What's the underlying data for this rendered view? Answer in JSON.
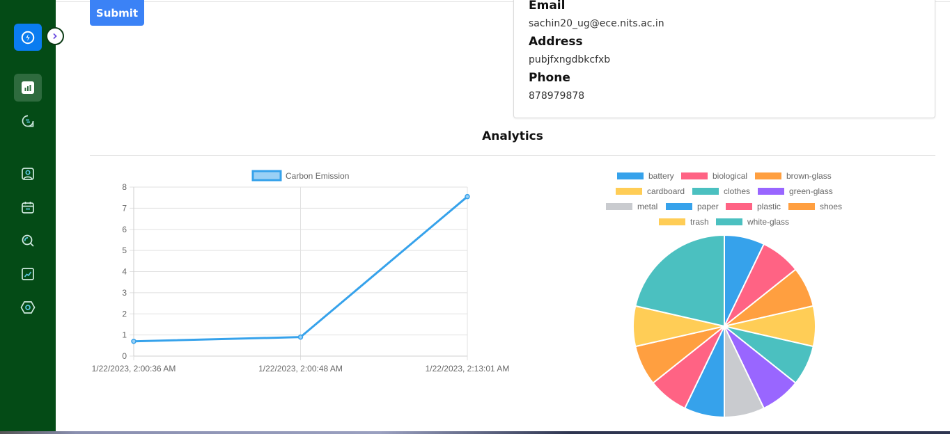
{
  "sidebar": {
    "brand_icon": "lightning-icon",
    "toggle_icon": "chevron-right-icon",
    "items": [
      {
        "name": "dashboard",
        "icon": "bar-chart-icon",
        "active": true
      },
      {
        "name": "messages",
        "icon": "chat-icon",
        "active": false
      },
      {
        "name": "profile",
        "icon": "user-card-icon",
        "active": false
      },
      {
        "name": "calendar",
        "icon": "calendar-icon",
        "active": false
      },
      {
        "name": "search",
        "icon": "search-icon",
        "active": false
      },
      {
        "name": "trends",
        "icon": "trend-chart-icon",
        "active": false
      },
      {
        "name": "settings",
        "icon": "hexagon-settings-icon",
        "active": false
      }
    ]
  },
  "form": {
    "submit_label": "Submit"
  },
  "profile": {
    "email_label": "Email",
    "email_value": "sachin20_ug@ece.nits.ac.in",
    "address_label": "Address",
    "address_value": "pubjfxngdbkcfxb",
    "phone_label": "Phone",
    "phone_value": "878979878"
  },
  "analytics": {
    "title": "Analytics"
  },
  "chart_data": [
    {
      "type": "line",
      "title": "",
      "legend": [
        "Carbon Emission"
      ],
      "legend_position": "top",
      "x": [
        "1/22/2023, 2:00:36 AM",
        "1/22/2023, 2:00:48 AM",
        "1/22/2023, 2:13:01 AM"
      ],
      "series": [
        {
          "name": "Carbon Emission",
          "values": [
            0.7,
            0.9,
            7.55
          ],
          "color": "#36a2eb"
        }
      ],
      "ylim": [
        0,
        8
      ],
      "yticks": [
        0,
        1,
        2,
        3,
        4,
        5,
        6,
        7,
        8
      ],
      "grid": true,
      "xlabel": "",
      "ylabel": ""
    },
    {
      "type": "pie",
      "title": "",
      "legend_position": "top",
      "categories": [
        "battery",
        "biological",
        "brown-glass",
        "cardboard",
        "clothes",
        "green-glass",
        "metal",
        "paper",
        "plastic",
        "shoes",
        "trash",
        "white-glass"
      ],
      "values": [
        1,
        1,
        1,
        1,
        1,
        1,
        1,
        1,
        1,
        1,
        1,
        3
      ],
      "colors": [
        "#36a2eb",
        "#ff6384",
        "#ff9f40",
        "#ffcd56",
        "#4bc0c0",
        "#9966ff",
        "#c9cbcf",
        "#36a2eb",
        "#ff6384",
        "#ff9f40",
        "#ffcd56",
        "#4bc0c0"
      ]
    }
  ]
}
